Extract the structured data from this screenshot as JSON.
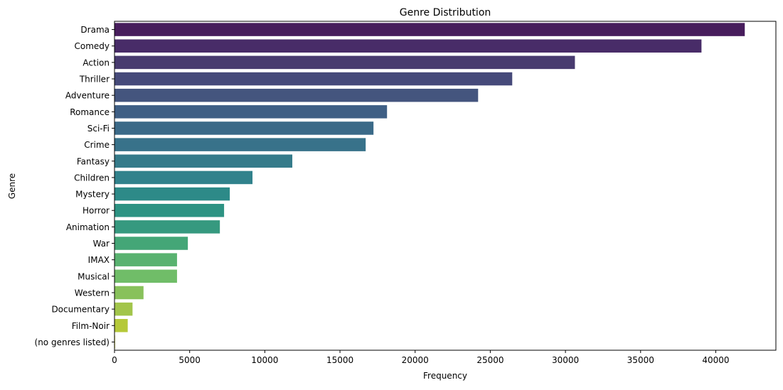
{
  "chart_data": {
    "type": "bar",
    "orientation": "horizontal",
    "title": "Genre Distribution",
    "xlabel": "Frequency",
    "ylabel": "Genre",
    "categories": [
      "Drama",
      "Comedy",
      "Action",
      "Thriller",
      "Adventure",
      "Romance",
      "Sci-Fi",
      "Crime",
      "Fantasy",
      "Children",
      "Mystery",
      "Horror",
      "Animation",
      "War",
      "IMAX",
      "Musical",
      "Western",
      "Documentary",
      "Film-Noir",
      "(no genres listed)"
    ],
    "values": [
      41930,
      39050,
      30630,
      26460,
      24190,
      18130,
      17230,
      16710,
      11830,
      9180,
      7670,
      7290,
      7010,
      4880,
      4160,
      4160,
      1930,
      1200,
      880,
      40
    ],
    "xlim": [
      0,
      44000
    ],
    "xticks": [
      0,
      5000,
      10000,
      15000,
      20000,
      25000,
      30000,
      35000,
      40000
    ],
    "xtick_labels": [
      "0",
      "5000",
      "10000",
      "15000",
      "20000",
      "25000",
      "30000",
      "35000",
      "40000"
    ],
    "grid": false,
    "palette": "viridis",
    "colors": [
      "#471d5c",
      "#482c68",
      "#483b6f",
      "#464a7a",
      "#44557e",
      "#3f5f85",
      "#3b6a88",
      "#38728a",
      "#357b8a",
      "#31828c",
      "#2d8a88",
      "#2d9383",
      "#36997f",
      "#44a677",
      "#59b270",
      "#70bd68",
      "#88c15b",
      "#a2c54b",
      "#b5c939",
      "#d2d332"
    ]
  }
}
